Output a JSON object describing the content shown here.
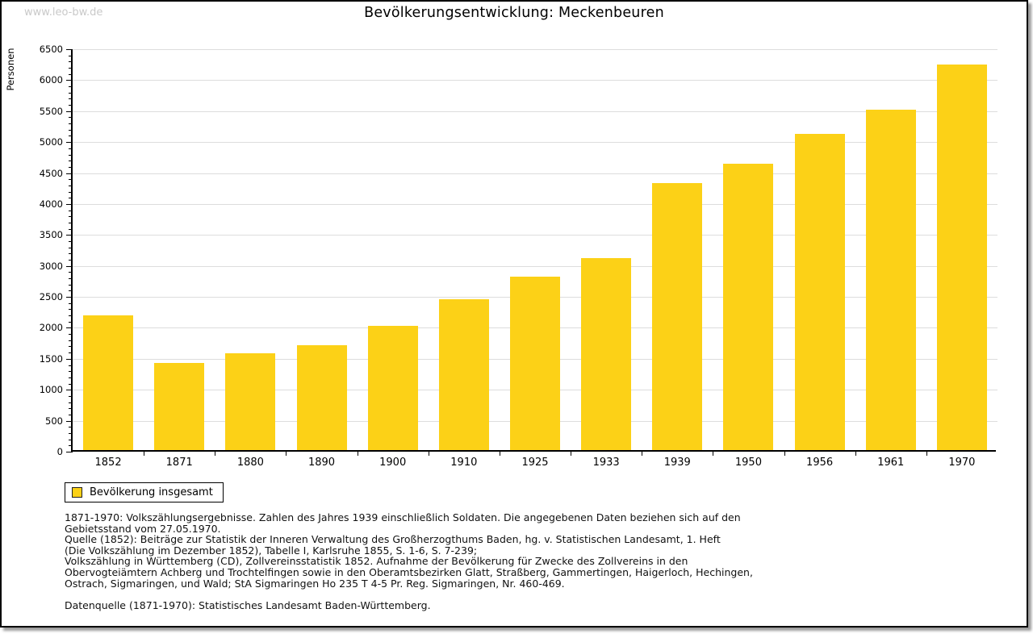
{
  "watermark": "www.leo-bw.de",
  "header": {
    "title": "Bevölkerungsentwicklung: Meckenbeuren"
  },
  "legend": {
    "label": "Bevölkerung insgesamt"
  },
  "colors": {
    "bar": "#fcd117",
    "gridline": "#dddddd",
    "axis": "#000000",
    "watermark": "#c9c9c9",
    "frame_shadow": "#9b9b9b"
  },
  "chart_data": {
    "type": "bar",
    "title": "Bevölkerungsentwicklung: Meckenbeuren",
    "xlabel": "",
    "ylabel": "Personen",
    "ylim": [
      0,
      6500
    ],
    "ytick_step": 500,
    "yminor_step": 100,
    "grid": true,
    "legend_position": "bottom-left",
    "series_name": "Bevölkerung insgesamt",
    "categories": [
      "1852",
      "1871",
      "1880",
      "1890",
      "1900",
      "1910",
      "1925",
      "1933",
      "1939",
      "1950",
      "1956",
      "1961",
      "1970"
    ],
    "values": [
      2170,
      1412,
      1568,
      1696,
      2010,
      2442,
      2796,
      3100,
      4306,
      4620,
      5104,
      5492,
      6226
    ]
  },
  "footer": {
    "lines": [
      "1871-1970: Volkszählungsergebnisse. Zahlen des Jahres 1939 einschließlich Soldaten. Die angegebenen Daten beziehen sich auf den",
      "Gebietsstand vom 27.05.1970.",
      "Quelle (1852): Beiträge zur Statistik der Inneren Verwaltung des Großherzogthums Baden, hg. v. Statistischen Landesamt, 1. Heft",
      "(Die Volkszählung im Dezember 1852), Tabelle I, Karlsruhe 1855, S. 1-6, S. 7-239;",
      "Volkszählung in Württemberg (CD), Zollvereinsstatistik 1852. Aufnahme der Bevölkerung für Zwecke des Zollvereins in den",
      "Obervogteiämtern Achberg und Trochtelfingen sowie in den Oberamtsbezirken Glatt, Straßberg, Gammertingen, Haigerloch, Hechingen,",
      "Ostrach, Sigmaringen, und Wald; StA Sigmaringen Ho 235 T 4-5 Pr. Reg. Sigmaringen, Nr. 460-469.",
      "",
      "Datenquelle (1871-1970): Statistisches Landesamt Baden-Württemberg."
    ]
  }
}
